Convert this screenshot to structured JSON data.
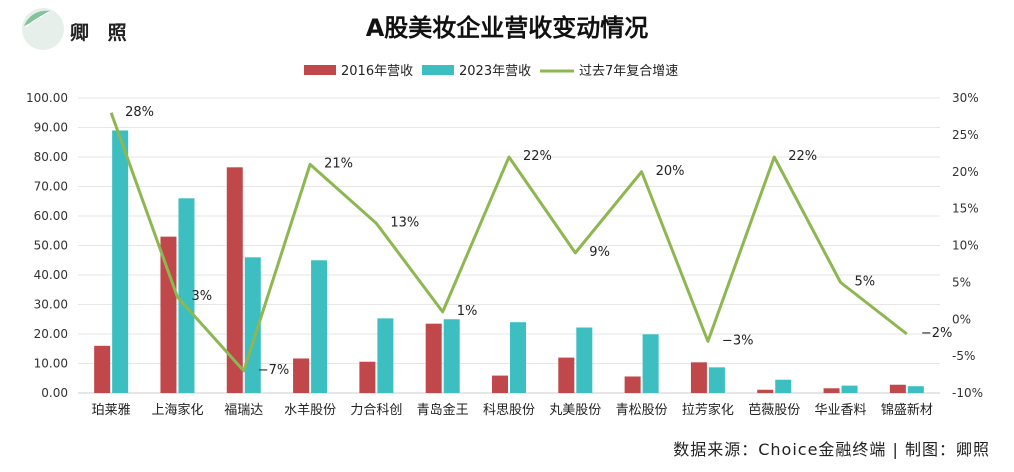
{
  "brand": "卿 照",
  "source": "数据来源：Choice金融终端 | 制图：卿照",
  "colors": {
    "s2016": "#c0474a",
    "s2023": "#3dbfc2",
    "growth": "#8db750",
    "axis": "#cccccc",
    "grid": "#e6e6e6"
  },
  "chart_data": {
    "type": "bar",
    "title": "A股美妆企业营收变动情况",
    "categories": [
      "珀莱雅",
      "上海家化",
      "福瑞达",
      "水羊股份",
      "力合科创",
      "青岛金王",
      "科思股份",
      "丸美股份",
      "青松股份",
      "拉芳家化",
      "芭薇股份",
      "华业香料",
      "锦盛新材"
    ],
    "series": [
      {
        "name": "2016年营收",
        "type": "bar",
        "axis": "left",
        "values": [
          16.0,
          53.0,
          76.5,
          11.7,
          10.6,
          23.5,
          5.9,
          12.0,
          5.6,
          10.4,
          1.1,
          1.6,
          2.8
        ]
      },
      {
        "name": "2023年营收",
        "type": "bar",
        "axis": "left",
        "values": [
          89.0,
          66.0,
          46.0,
          45.0,
          25.3,
          25.0,
          24.0,
          22.2,
          19.9,
          8.7,
          4.5,
          2.5,
          2.3
        ]
      },
      {
        "name": "过去7年复合增速",
        "type": "line",
        "axis": "right",
        "values": [
          28,
          3,
          -7,
          21,
          13,
          1,
          22,
          9,
          20,
          -3,
          22,
          5,
          -2
        ],
        "labels": [
          "28%",
          "3%",
          "−7%",
          "21%",
          "13%",
          "1%",
          "22%",
          "9%",
          "20%",
          "−3%",
          "22%",
          "5%",
          "−2%"
        ]
      }
    ],
    "y_left": {
      "ylim": [
        0,
        100
      ],
      "ticks": [
        "0.00",
        "10.00",
        "20.00",
        "30.00",
        "40.00",
        "50.00",
        "60.00",
        "70.00",
        "80.00",
        "90.00",
        "100.00"
      ]
    },
    "y_right": {
      "ylim": [
        -10,
        30
      ],
      "ticks": [
        "-10%",
        "-5%",
        "0%",
        "5%",
        "10%",
        "15%",
        "20%",
        "25%",
        "30%"
      ]
    },
    "legend_position": "top-center",
    "grid": true
  }
}
